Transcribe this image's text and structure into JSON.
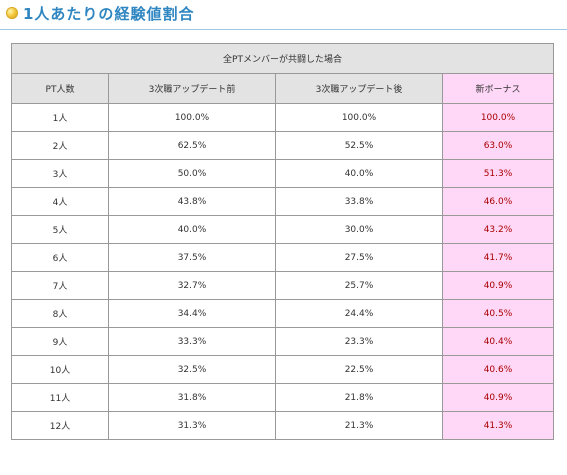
{
  "heading": {
    "title": "1人あたりの経験値割合",
    "bullet_color": "#f3c73a",
    "title_color": "#2f86c1"
  },
  "table": {
    "caption": "全PTメンバーが共闘した場合",
    "headers": [
      "PT人数",
      "3次職アップデート前",
      "3次職アップデート後",
      "新ボーナス"
    ],
    "bonus_bg": "#ffd7f7",
    "bonus_text_color": "#a80000",
    "rows": [
      {
        "size": "1人",
        "before": "100.0%",
        "after": "100.0%",
        "bonus": "100.0%"
      },
      {
        "size": "2人",
        "before": "62.5%",
        "after": "52.5%",
        "bonus": "63.0%"
      },
      {
        "size": "3人",
        "before": "50.0%",
        "after": "40.0%",
        "bonus": "51.3%"
      },
      {
        "size": "4人",
        "before": "43.8%",
        "after": "33.8%",
        "bonus": "46.0%"
      },
      {
        "size": "5人",
        "before": "40.0%",
        "after": "30.0%",
        "bonus": "43.2%"
      },
      {
        "size": "6人",
        "before": "37.5%",
        "after": "27.5%",
        "bonus": "41.7%"
      },
      {
        "size": "7人",
        "before": "32.7%",
        "after": "25.7%",
        "bonus": "40.9%"
      },
      {
        "size": "8人",
        "before": "34.4%",
        "after": "24.4%",
        "bonus": "40.5%"
      },
      {
        "size": "9人",
        "before": "33.3%",
        "after": "23.3%",
        "bonus": "40.4%"
      },
      {
        "size": "10人",
        "before": "32.5%",
        "after": "22.5%",
        "bonus": "40.6%"
      },
      {
        "size": "11人",
        "before": "31.8%",
        "after": "21.8%",
        "bonus": "40.9%"
      },
      {
        "size": "12人",
        "before": "31.3%",
        "after": "21.3%",
        "bonus": "41.3%"
      }
    ]
  }
}
